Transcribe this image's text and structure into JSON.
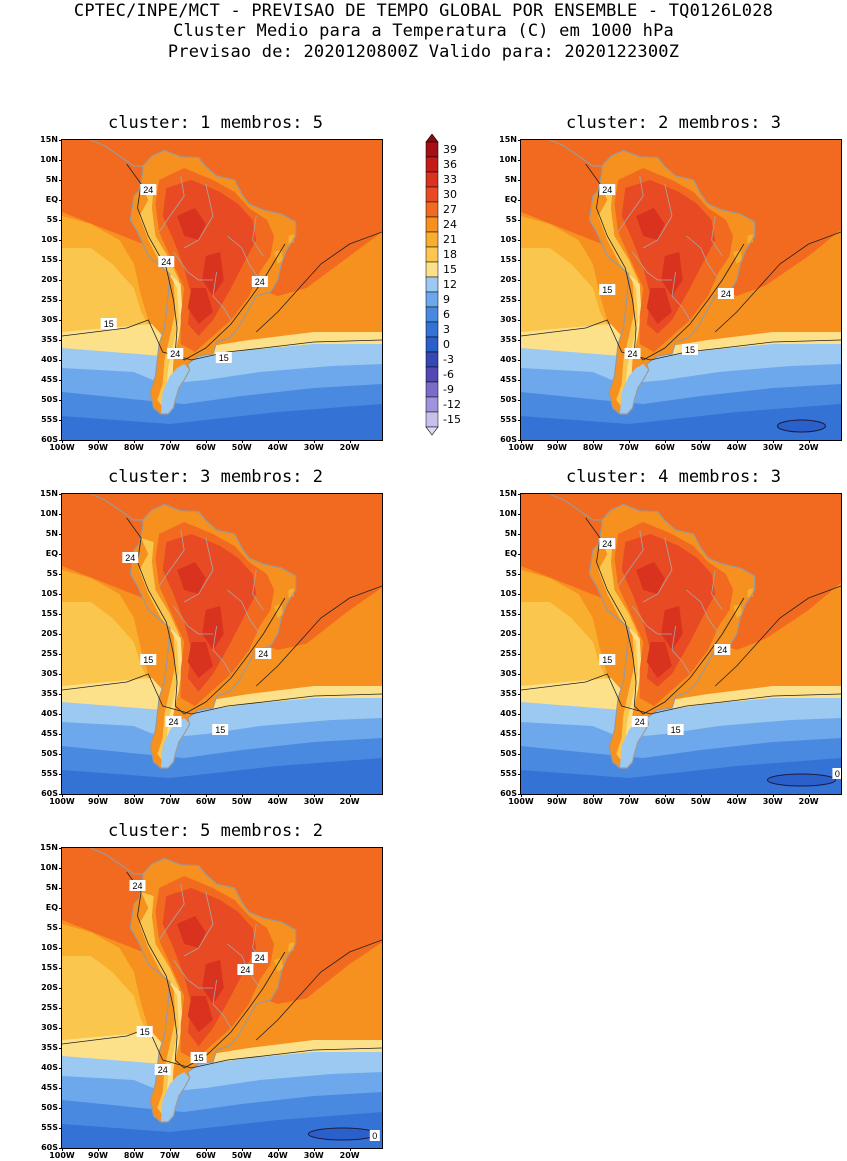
{
  "header": {
    "line1": "CPTEC/INPE/MCT - PREVISAO DE TEMPO GLOBAL POR ENSEMBLE - TQ0126L028",
    "line2": "Cluster Medio para a Temperatura (C) em 1000 hPa",
    "line3": "Previsao de: 2020120800Z   Valido para: 2020122300Z"
  },
  "axes": {
    "lat_labels": [
      "15N",
      "10N",
      "5N",
      "EQ",
      "5S",
      "10S",
      "15S",
      "20S",
      "25S",
      "30S",
      "35S",
      "40S",
      "45S",
      "50S",
      "55S",
      "60S"
    ],
    "lon_labels": [
      "100W",
      "90W",
      "80W",
      "70W",
      "60W",
      "50W",
      "40W",
      "30W",
      "20W"
    ]
  },
  "colorbar": {
    "labels": [
      "39",
      "36",
      "33",
      "30",
      "27",
      "24",
      "21",
      "18",
      "15",
      "12",
      "9",
      "6",
      "3",
      "0",
      "-3",
      "-6",
      "-9",
      "-12",
      "-15"
    ],
    "colors": [
      "#a50f15",
      "#c41a1a",
      "#d9331f",
      "#e84a23",
      "#f26a1f",
      "#f6901f",
      "#f9ae2e",
      "#fbc64e",
      "#fde08a",
      "#9cc9f2",
      "#6ea8ec",
      "#4a89e0",
      "#3472d6",
      "#2b5fc9",
      "#3546b5",
      "#5648b4",
      "#7a6cc8",
      "#9f93dc",
      "#c8c0ec"
    ],
    "above_max_color": "#8b0d10",
    "below_min_color": "#ddd8f4"
  },
  "panels": [
    {
      "id": "c1",
      "title": "cluster: 1   membros: 5",
      "contour_labels": [
        "24",
        "24",
        "24",
        "24",
        "15",
        "15"
      ]
    },
    {
      "id": "c2",
      "title": "cluster: 2   membros: 3",
      "contour_labels": [
        "24",
        "15",
        "24",
        "24",
        "15"
      ]
    },
    {
      "id": "c3",
      "title": "cluster: 3   membros: 2",
      "contour_labels": [
        "24",
        "15",
        "24",
        "24",
        "15"
      ]
    },
    {
      "id": "c4",
      "title": "cluster: 4   membros: 3",
      "contour_labels": [
        "24",
        "15",
        "24",
        "24",
        "15",
        "0"
      ]
    },
    {
      "id": "c5",
      "title": "cluster: 5   membros: 2",
      "contour_labels": [
        "24",
        "15",
        "24",
        "24",
        "24",
        "15",
        "0"
      ]
    }
  ]
}
